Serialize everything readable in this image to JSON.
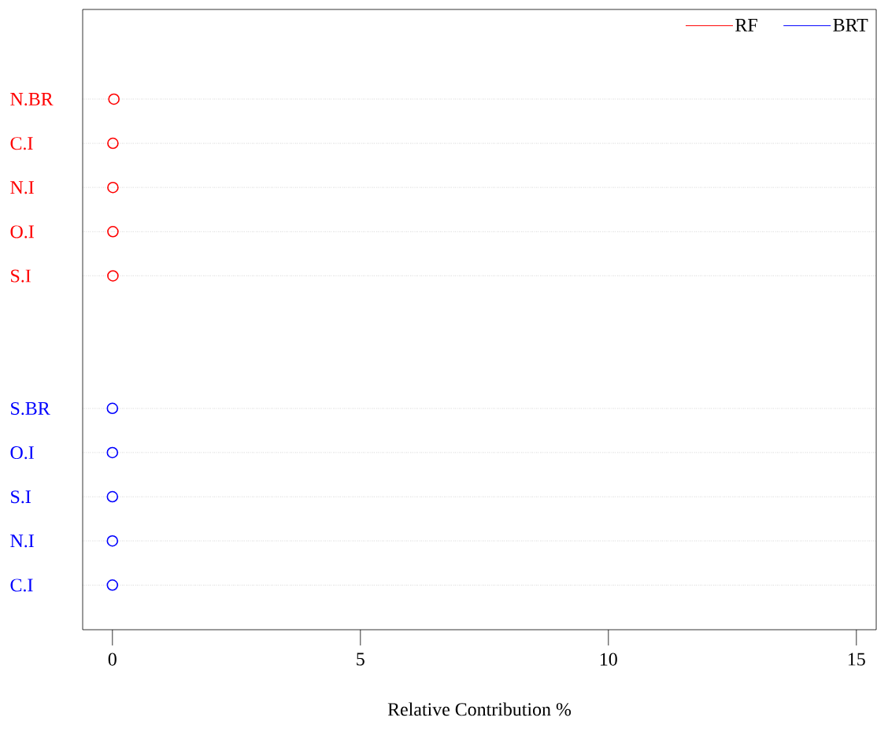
{
  "chart_data": {
    "type": "scatter",
    "orientation": "horizontal",
    "categories": [
      "N.BR",
      "C.I",
      "N.I",
      "O.I",
      "S.I",
      null,
      null,
      "S.BR",
      "O.I",
      "S.I",
      "N.I",
      "C.I"
    ],
    "series": [
      {
        "name": "RF",
        "color": "#ff0000",
        "values": [
          0.03,
          0.01,
          0.01,
          0.01,
          0.01,
          null,
          null,
          null,
          null,
          null,
          null,
          null
        ]
      },
      {
        "name": "BRT",
        "color": "#0000ff",
        "values": [
          null,
          null,
          null,
          null,
          null,
          null,
          null,
          0,
          0,
          0,
          0,
          0
        ]
      }
    ],
    "xlabel": "Relative Contribution %",
    "xlim": [
      -0.6,
      15.4
    ],
    "xticks": [
      0,
      5,
      10,
      15
    ],
    "grid": "y",
    "legend": "top right",
    "marker": "circle"
  }
}
